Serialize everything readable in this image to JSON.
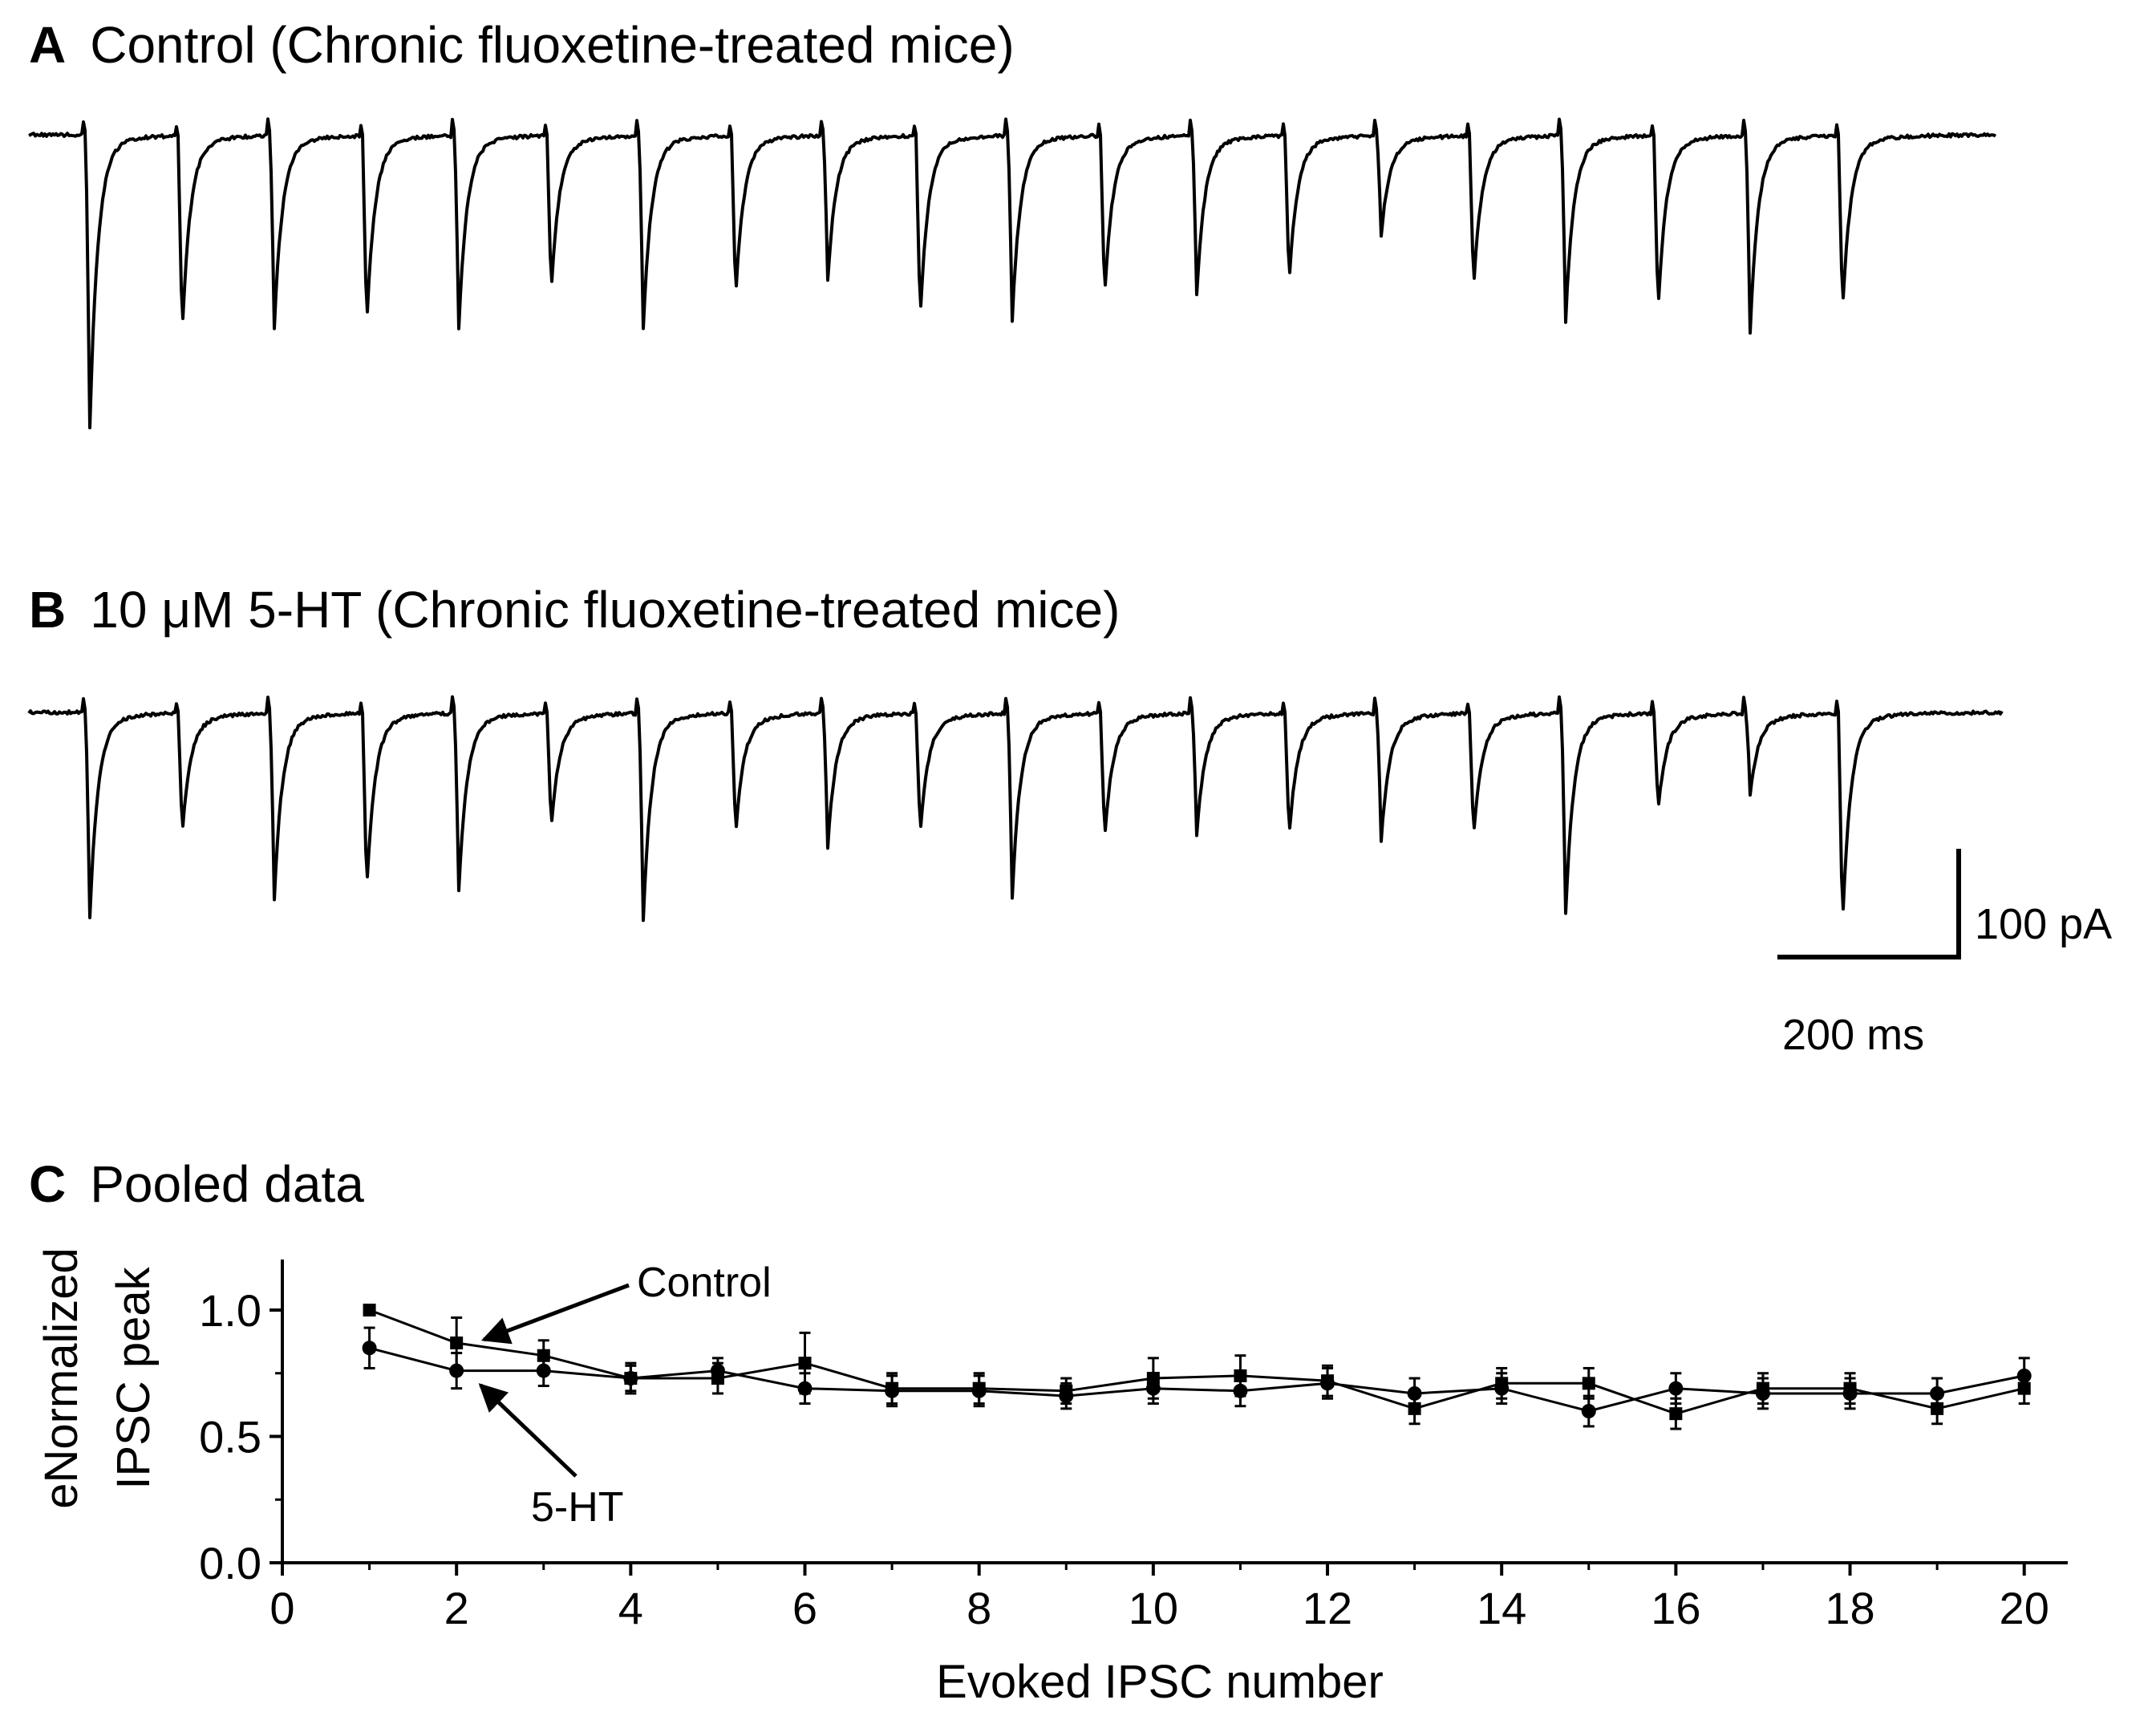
{
  "panels": {
    "a": {
      "letter": "A",
      "title": "Control (Chronic fluoxetine-treated mice)"
    },
    "b": {
      "letter": "B",
      "title": "10 μM 5-HT (Chronic fluoxetine-treated mice)"
    },
    "c": {
      "letter": "C",
      "title": "Pooled data"
    }
  },
  "scale_bar": {
    "current_label": "100 pA",
    "time_label": "200 ms",
    "current_pA": 100,
    "time_ms": 200
  },
  "traces": {
    "stimulus_count": 20,
    "control_relative_amplitudes": [
      1.0,
      0.68,
      0.65,
      0.65,
      0.65,
      0.53,
      0.65,
      0.55,
      0.48,
      0.63,
      0.62,
      0.55,
      0.53,
      0.5,
      0.32,
      0.52,
      0.62,
      0.6,
      0.66,
      0.6
    ],
    "fht_relative_amplitudes": [
      0.95,
      0.55,
      0.85,
      0.83,
      0.82,
      0.53,
      0.96,
      0.55,
      0.6,
      0.56,
      0.85,
      0.58,
      0.55,
      0.57,
      0.58,
      0.57,
      0.93,
      0.44,
      0.35,
      1.0
    ]
  },
  "chart_data": {
    "type": "line",
    "xlabel": "Evoked IPSC number",
    "ylabel_line1": "eNormalized",
    "ylabel_line2": "IPSC peak",
    "xlim": [
      0,
      20.5
    ],
    "ylim": [
      0,
      1.2
    ],
    "xticks": [
      0,
      2,
      4,
      6,
      8,
      10,
      12,
      14,
      16,
      18,
      20
    ],
    "yticks": [
      0.0,
      0.5,
      1.0
    ],
    "ytick_labels": [
      "0.0",
      "0.5",
      "1.0"
    ],
    "x": [
      1,
      2,
      3,
      4,
      5,
      6,
      7,
      8,
      9,
      10,
      11,
      12,
      13,
      14,
      15,
      16,
      17,
      18,
      19,
      20
    ],
    "series": [
      {
        "name": "Control",
        "marker": "square",
        "values": [
          1.0,
          0.87,
          0.82,
          0.73,
          0.73,
          0.79,
          0.69,
          0.69,
          0.68,
          0.73,
          0.74,
          0.72,
          0.61,
          0.71,
          0.71,
          0.59,
          0.69,
          0.69,
          0.61,
          0.69
        ],
        "errors": [
          0.0,
          0.1,
          0.06,
          0.05,
          0.06,
          0.12,
          0.06,
          0.06,
          0.05,
          0.08,
          0.08,
          0.06,
          0.06,
          0.06,
          0.06,
          0.06,
          0.06,
          0.06,
          0.06,
          0.06
        ]
      },
      {
        "name": "5-HT",
        "marker": "circle",
        "values": [
          0.85,
          0.76,
          0.76,
          0.73,
          0.76,
          0.69,
          0.68,
          0.68,
          0.66,
          0.69,
          0.68,
          0.71,
          0.67,
          0.69,
          0.6,
          0.69,
          0.67,
          0.67,
          0.67,
          0.74
        ],
        "errors": [
          0.08,
          0.07,
          0.06,
          0.06,
          0.05,
          0.06,
          0.06,
          0.06,
          0.05,
          0.06,
          0.06,
          0.06,
          0.06,
          0.06,
          0.06,
          0.06,
          0.06,
          0.06,
          0.06,
          0.07
        ]
      }
    ],
    "annotations": [
      {
        "text": "Control",
        "series": "Control",
        "point_x": 2
      },
      {
        "text": "5-HT",
        "series": "5-HT",
        "point_x": 2
      }
    ]
  }
}
